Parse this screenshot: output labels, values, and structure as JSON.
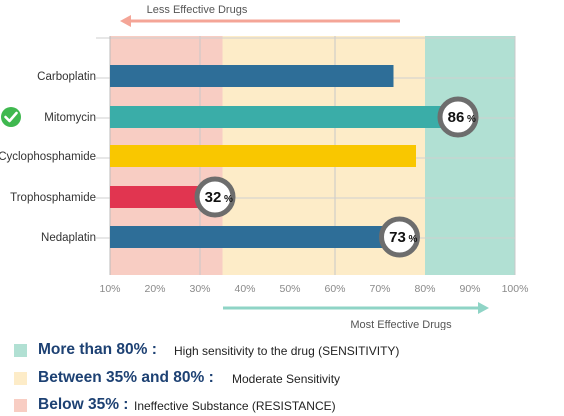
{
  "chart_data": {
    "type": "bar",
    "orientation": "horizontal",
    "categories": [
      "Carboplatin",
      "Mitomycin",
      "Cyclophosphamide",
      "Trophosphamide",
      "Nedaplatin"
    ],
    "values": [
      73,
      86,
      78,
      32,
      73
    ],
    "bar_colors": [
      "#2e6e98",
      "#3aada8",
      "#f9c700",
      "#e13550",
      "#2e6e98"
    ],
    "value_badges": [
      {
        "index": 1,
        "label": "86",
        "suffix": "%"
      },
      {
        "index": 3,
        "label": "32",
        "suffix": "%"
      },
      {
        "index": 4,
        "label": "73",
        "suffix": "%"
      }
    ],
    "checked_index": 1,
    "xlim": [
      10,
      100
    ],
    "x_ticks": [
      10,
      20,
      30,
      40,
      50,
      60,
      70,
      80,
      90,
      100
    ],
    "x_tick_labels": [
      "10%",
      "20%",
      "30%",
      "40%",
      "50%",
      "60%",
      "70%",
      "80%",
      "90%",
      "100%"
    ],
    "grid": true,
    "zones": [
      {
        "from": 10,
        "to": 35,
        "color": "#f8cdc3"
      },
      {
        "from": 35,
        "to": 80,
        "color": "#fdecc8"
      },
      {
        "from": 80,
        "to": 100,
        "color": "#b1e0d3"
      }
    ],
    "top_arrow_label": "Less Effective Drugs",
    "bottom_arrow_label": "Most Effective Drugs"
  },
  "legend": [
    {
      "bold": "More than 80% :",
      "desc": "High sensitivity to the drug (SENSITIVITY)",
      "color": "#b1e0d3"
    },
    {
      "bold": "Between 35% and 80% :",
      "desc": "Moderate Sensitivity",
      "color": "#fdecc8"
    },
    {
      "bold": "Below 35% :",
      "desc": "Ineffective Substance (RESISTANCE)",
      "color": "#f8cdc3"
    }
  ],
  "colors": {
    "top_arrow": "#f4a597",
    "bottom_arrow": "#8fd4c6",
    "badge_ring": "#6d6d6d",
    "check": "#3fb84f"
  }
}
